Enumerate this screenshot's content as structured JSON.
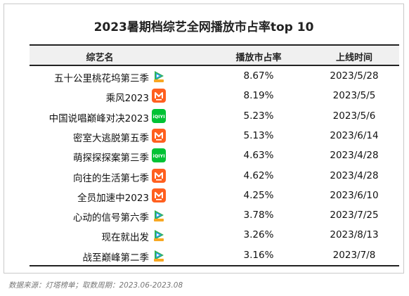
{
  "chart_data": {
    "type": "table",
    "title": "2023暑期档综艺全网播放市占率top 10",
    "columns": [
      "综艺名",
      "播放市占率",
      "上线时间"
    ],
    "rows": [
      {
        "name": "五十公里桃花坞第三季",
        "platform": "tencent-video-icon",
        "share": "8.67%",
        "date": "2023/5/28"
      },
      {
        "name": "乘风2023",
        "platform": "mango-tv-icon",
        "share": "8.19%",
        "date": "2023/5/5"
      },
      {
        "name": "中国说唱巅峰对决2023",
        "platform": "iqiyi-icon",
        "share": "5.23%",
        "date": "2023/5/6"
      },
      {
        "name": "密室大逃脱第五季",
        "platform": "mango-tv-icon",
        "share": "5.13%",
        "date": "2023/6/14"
      },
      {
        "name": "萌探探探案第三季",
        "platform": "iqiyi-icon",
        "share": "4.63%",
        "date": "2023/4/28"
      },
      {
        "name": "向往的生活第七季",
        "platform": "mango-tv-icon",
        "share": "4.62%",
        "date": "2023/4/28"
      },
      {
        "name": "全员加速中2023",
        "platform": "mango-tv-icon",
        "share": "4.25%",
        "date": "2023/6/10"
      },
      {
        "name": "心动的信号第六季",
        "platform": "tencent-video-icon",
        "share": "3.78%",
        "date": "2023/7/25"
      },
      {
        "name": "现在就出发",
        "platform": "tencent-video-icon",
        "share": "3.26%",
        "date": "2023/8/13"
      },
      {
        "name": "战至巅峰第二季",
        "platform": "tencent-video-icon",
        "share": "3.16%",
        "date": "2023/7/8"
      }
    ]
  },
  "footer": {
    "source": "数据来源：灯塔榜单；取数周期：2023.06-2023.08"
  },
  "colors": {
    "header_bg": "#f0f0f0",
    "rule": "#222222",
    "mango": "#ff5f1f",
    "iqiyi": "#00c234",
    "tencent_green": "#2fb35a",
    "tencent_blue": "#2c9cf0",
    "tencent_orange": "#f7a823"
  }
}
